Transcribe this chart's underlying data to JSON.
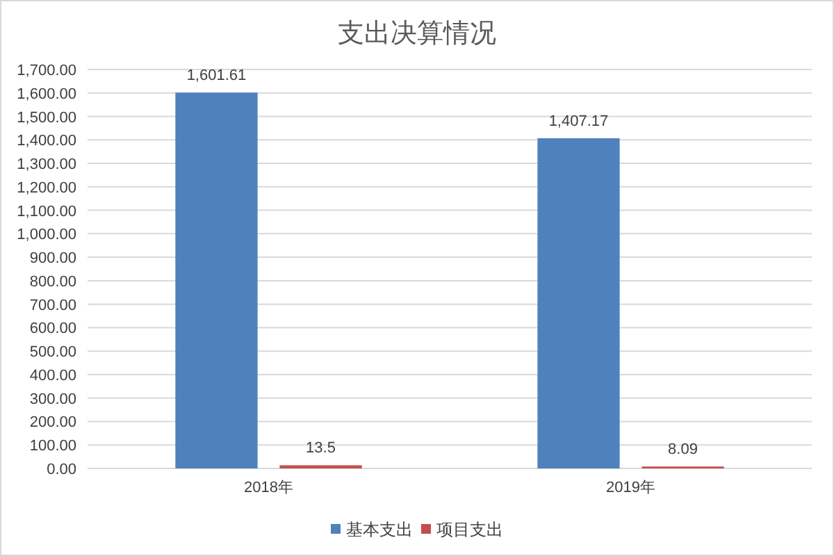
{
  "chart_data": {
    "type": "bar",
    "title": "支出决算情况",
    "categories": [
      "2018年",
      "2019年"
    ],
    "series": [
      {
        "name": "基本支出",
        "color": "#4f81bd",
        "values": [
          1601.61,
          1407.17
        ],
        "value_labels": [
          "1,601.61",
          "1,407.17"
        ]
      },
      {
        "name": "项目支出",
        "color": "#c0504d",
        "values": [
          13.5,
          8.09
        ],
        "value_labels": [
          "13.5",
          "8.09"
        ]
      }
    ],
    "ylim": [
      0,
      1700
    ],
    "yticks": [
      {
        "value": 0,
        "label": "0.00"
      },
      {
        "value": 100,
        "label": "100.00"
      },
      {
        "value": 200,
        "label": "200.00"
      },
      {
        "value": 300,
        "label": "300.00"
      },
      {
        "value": 400,
        "label": "400.00"
      },
      {
        "value": 500,
        "label": "500.00"
      },
      {
        "value": 600,
        "label": "600.00"
      },
      {
        "value": 700,
        "label": "700.00"
      },
      {
        "value": 800,
        "label": "800.00"
      },
      {
        "value": 900,
        "label": "900.00"
      },
      {
        "value": 1000,
        "label": "1,000.00"
      },
      {
        "value": 1100,
        "label": "1,100.00"
      },
      {
        "value": 1200,
        "label": "1,200.00"
      },
      {
        "value": 1300,
        "label": "1,300.00"
      },
      {
        "value": 1400,
        "label": "1,400.00"
      },
      {
        "value": 1500,
        "label": "1,500.00"
      },
      {
        "value": 1600,
        "label": "1,600.00"
      },
      {
        "value": 1700,
        "label": "1,700.00"
      }
    ],
    "grid": "y",
    "legend": "bottom"
  }
}
